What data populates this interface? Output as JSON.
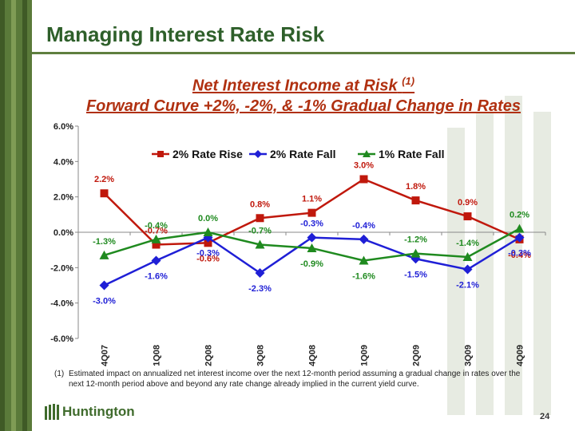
{
  "slide": {
    "title": "Managing Interest Rate Risk",
    "subtitle_main": "Net Interest Income at Risk",
    "subtitle_sup": "(1)",
    "subtitle_2": "Forward Curve +2%, -2%, & -1% Gradual Change in Rates",
    "footnote_num": "(1)",
    "footnote_text": "Estimated impact on annualized net interest income over the next 12-month period assuming a gradual change in rates over the next 12-month period above and beyond any rate change already implied in the current yield curve.",
    "logo_text": "Huntington",
    "page_number": "24"
  },
  "colors": {
    "rise": "#c0180c",
    "fall2": "#1f1fd6",
    "fall1": "#1f8a1f",
    "title": "#2e5f2a",
    "subtitle": "#b03010"
  },
  "chart_data": {
    "type": "line",
    "title": "",
    "xlabel": "",
    "ylabel": "",
    "categories": [
      "4Q07",
      "1Q08",
      "2Q08",
      "3Q08",
      "4Q08",
      "1Q09",
      "2Q09",
      "3Q09",
      "4Q09"
    ],
    "ylim": [
      -6.0,
      6.0
    ],
    "yticks": [
      "6.0%",
      "4.0%",
      "2.0%",
      "0.0%",
      "-2.0%",
      "-4.0%",
      "-6.0%"
    ],
    "ytick_values": [
      6,
      4,
      2,
      0,
      -2,
      -4,
      -6
    ],
    "grid": false,
    "legend": "top-center",
    "series": [
      {
        "name": "2% Rate Rise",
        "color_key": "rise",
        "marker": "square",
        "values": [
          2.2,
          -0.7,
          -0.6,
          0.8,
          1.1,
          3.0,
          1.8,
          0.9,
          -0.4
        ],
        "labels": [
          "2.2%",
          "-0.7%",
          "-0.6%",
          "0.8%",
          "1.1%",
          "3.0%",
          "1.8%",
          "0.9%",
          "-0.4%"
        ],
        "label_pos": [
          "above",
          "above",
          "below",
          "above",
          "above",
          "above",
          "above",
          "above",
          "below"
        ]
      },
      {
        "name": "2% Rate Fall",
        "color_key": "fall2",
        "marker": "diamond",
        "values": [
          -3.0,
          -1.6,
          -0.3,
          -2.3,
          -0.3,
          -0.4,
          -1.5,
          -2.1,
          -0.3
        ],
        "labels": [
          "-3.0%",
          "-1.6%",
          "-0.3%",
          "-2.3%",
          "-0.3%",
          "-0.4%",
          "-1.5%",
          "-2.1%",
          "-0.3%"
        ],
        "label_pos": [
          "below",
          "below",
          "below",
          "below",
          "above",
          "above",
          "below",
          "below",
          "below"
        ]
      },
      {
        "name": "1% Rate Fall",
        "color_key": "fall1",
        "marker": "triangle",
        "values": [
          -1.3,
          -0.4,
          0.0,
          -0.7,
          -0.9,
          -1.6,
          -1.2,
          -1.4,
          0.2
        ],
        "labels": [
          "-1.3%",
          "-0.4%",
          "0.0%",
          "-0.7%",
          "-0.9%",
          "-1.6%",
          "-1.2%",
          "-1.4%",
          "0.2%"
        ],
        "label_pos": [
          "above",
          "above",
          "above",
          "above",
          "below",
          "below",
          "above",
          "above",
          "above"
        ]
      }
    ]
  }
}
